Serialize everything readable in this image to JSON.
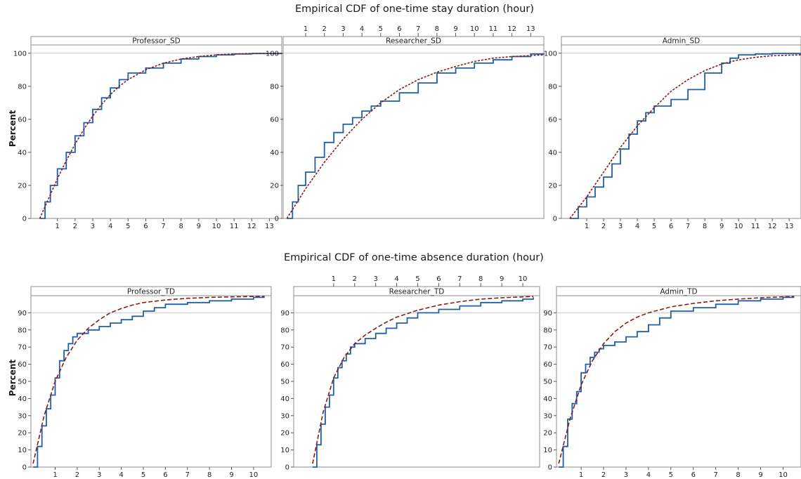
{
  "figure": {
    "title_top": "Empirical CDF of one-time stay duration (hour)",
    "title_bottom": "Empirical CDF of one-time absence duration (hour)",
    "ylabel": "Percent"
  },
  "colors": {
    "ecdf": "#1f5fa8",
    "fit": "#8b1a1a",
    "frame": "#8c8c8c",
    "grid": "#c8c8c8"
  },
  "chart_data": [
    {
      "type": "line",
      "title": "Professor_SD",
      "ylabel": "Percent",
      "xlim": [
        -0.5,
        13.7
      ],
      "ylim": [
        0,
        105
      ],
      "xticks": [
        1,
        2,
        3,
        4,
        5,
        6,
        7,
        8,
        9,
        10,
        11,
        12,
        13
      ],
      "yticks": [
        0,
        20,
        40,
        60,
        80,
        100
      ],
      "xticks_top": [],
      "series": [
        {
          "values_x": [
            0,
            0.3,
            0.6,
            1,
            1.5,
            2,
            2.5,
            3,
            3.5,
            4,
            4.5,
            5,
            6,
            7,
            8,
            9,
            10,
            11,
            12,
            13.7
          ],
          "values": [
            0,
            10,
            20,
            30,
            40,
            50,
            58,
            66,
            73,
            79,
            84,
            88,
            91,
            94,
            96.5,
            98,
            99,
            99.5,
            99.8,
            100
          ],
          "style": "step"
        },
        {
          "values_x": [
            0,
            0.5,
            1,
            1.5,
            2,
            2.5,
            3,
            3.5,
            4,
            4.5,
            5,
            6,
            7,
            8,
            9,
            10,
            11,
            12,
            13.7
          ],
          "values": [
            0,
            12,
            24,
            35,
            45,
            54,
            62,
            69,
            75,
            80,
            84,
            90,
            94,
            96.5,
            98,
            99,
            99.5,
            99.8,
            100
          ],
          "style": "dashed"
        }
      ]
    },
    {
      "type": "line",
      "title": "Researcher_SD",
      "ylabel": "",
      "xlim": [
        -0.2,
        13.7
      ],
      "ylim": [
        0,
        105
      ],
      "xticks": [],
      "yticks": [
        0,
        20,
        40,
        60,
        80,
        100
      ],
      "xticks_top": [
        1,
        2,
        3,
        4,
        5,
        6,
        7,
        8,
        9,
        10,
        11,
        12,
        13
      ],
      "series": [
        {
          "values_x": [
            0,
            0.3,
            0.6,
            1,
            1.5,
            2,
            2.5,
            3,
            3.5,
            4,
            4.5,
            5,
            6,
            7,
            8,
            9,
            10,
            11,
            12,
            13,
            13.7
          ],
          "values": [
            0,
            10,
            20,
            28,
            37,
            46,
            52,
            57,
            61,
            65,
            68,
            71,
            76,
            82,
            88,
            91,
            94,
            96,
            98,
            99.5,
            100
          ],
          "style": "step"
        },
        {
          "values_x": [
            0,
            1,
            2,
            3,
            4,
            5,
            6,
            7,
            8,
            9,
            10,
            11,
            12,
            13.7
          ],
          "values": [
            0,
            18,
            34,
            48,
            60,
            70,
            78,
            84,
            88.5,
            92,
            95,
            97,
            98,
            99
          ],
          "style": "dashed"
        }
      ]
    },
    {
      "type": "line",
      "title": "Admin_SD",
      "ylabel": "",
      "xlim": [
        -0.5,
        13.7
      ],
      "ylim": [
        0,
        105
      ],
      "xticks": [
        1,
        2,
        3,
        4,
        5,
        6,
        7,
        8,
        9,
        10,
        11,
        12,
        13
      ],
      "yticks": [
        0,
        20,
        40,
        60,
        80,
        100
      ],
      "xticks_top": [],
      "series": [
        {
          "values_x": [
            0,
            0.5,
            1,
            1.5,
            2,
            2.5,
            3,
            3.5,
            4,
            4.5,
            5,
            6,
            7,
            8,
            9,
            9.5,
            10,
            11,
            12,
            13.7
          ],
          "values": [
            0,
            7,
            13,
            19,
            25,
            33,
            42,
            51,
            59,
            64,
            68,
            72,
            78,
            88,
            94,
            97,
            99,
            99.5,
            99.8,
            100
          ],
          "style": "step"
        },
        {
          "values_x": [
            0,
            1,
            2,
            3,
            4,
            5,
            6,
            7,
            8,
            9,
            10,
            11,
            12,
            13.7
          ],
          "values": [
            0,
            13,
            28,
            43,
            56,
            67,
            77,
            84,
            89.5,
            93.5,
            96,
            97.5,
            98.5,
            99
          ],
          "style": "dashed"
        }
      ]
    },
    {
      "type": "line",
      "title": "Professor_TD",
      "ylabel": "Percent",
      "xlim": [
        -0.1,
        10.8
      ],
      "ylim": [
        0,
        100
      ],
      "xticks": [
        1,
        2,
        3,
        4,
        5,
        6,
        7,
        8,
        9,
        10
      ],
      "yticks": [
        0,
        10,
        20,
        30,
        40,
        50,
        60,
        70,
        80,
        90
      ],
      "xticks_top": [],
      "series": [
        {
          "values_x": [
            0,
            0.2,
            0.4,
            0.6,
            0.8,
            1,
            1.2,
            1.4,
            1.6,
            1.8,
            2,
            2.5,
            3,
            3.5,
            4,
            4.5,
            5,
            5.5,
            6,
            7,
            8,
            9,
            10,
            10.5
          ],
          "values": [
            0,
            12,
            24,
            34,
            42,
            52,
            62,
            68,
            72,
            76,
            78,
            80,
            82,
            84,
            86,
            88,
            91,
            93,
            95,
            96,
            97,
            98,
            99,
            99
          ],
          "style": "step"
        },
        {
          "values_x": [
            0,
            0.5,
            1,
            1.5,
            2,
            2.5,
            3,
            3.5,
            4,
            4.5,
            5,
            6,
            7,
            8,
            9,
            10,
            10.5
          ],
          "values": [
            2,
            30,
            50,
            64,
            74,
            81,
            86,
            90,
            92.5,
            94.5,
            96,
            97.5,
            98.5,
            99,
            99.3,
            99.5,
            99.5
          ],
          "style": "dashed"
        }
      ]
    },
    {
      "type": "line",
      "title": "Researcher_TD",
      "ylabel": "",
      "xlim": [
        -0.9,
        10.8
      ],
      "ylim": [
        0,
        100
      ],
      "xticks": [],
      "yticks": [
        0,
        10,
        20,
        30,
        40,
        50,
        60,
        70,
        80,
        90
      ],
      "xticks_top": [
        1,
        2,
        3,
        4,
        5,
        6,
        7,
        8,
        9,
        10
      ],
      "series": [
        {
          "values_x": [
            0,
            0.2,
            0.4,
            0.6,
            0.8,
            1,
            1.2,
            1.4,
            1.6,
            1.8,
            2,
            2.5,
            3,
            3.5,
            4,
            4.5,
            5,
            6,
            7,
            8,
            9,
            10,
            10.5
          ],
          "values": [
            0,
            13,
            25,
            35,
            42,
            52,
            58,
            62,
            66,
            70,
            72,
            75,
            78,
            81,
            84,
            87,
            90,
            92,
            94,
            96,
            97,
            98,
            99
          ],
          "style": "step"
        },
        {
          "values_x": [
            0,
            0.5,
            1,
            1.5,
            2,
            2.5,
            3,
            3.5,
            4,
            5,
            6,
            7,
            8,
            9,
            10,
            10.5
          ],
          "values": [
            2,
            32,
            52,
            64,
            72,
            77,
            81,
            84.5,
            87.5,
            91.5,
            94.5,
            96.5,
            98,
            98.8,
            99.3,
            99.5
          ],
          "style": "dashed"
        }
      ]
    },
    {
      "type": "line",
      "title": "Admin_TD",
      "ylabel": "",
      "xlim": [
        -0.1,
        10.8
      ],
      "ylim": [
        0,
        100
      ],
      "xticks": [
        1,
        2,
        3,
        4,
        5,
        6,
        7,
        8,
        9,
        10
      ],
      "yticks": [
        0,
        10,
        20,
        30,
        40,
        50,
        60,
        70,
        80,
        90
      ],
      "xticks_top": [],
      "series": [
        {
          "values_x": [
            0,
            0.2,
            0.4,
            0.6,
            0.8,
            1,
            1.2,
            1.4,
            1.6,
            1.8,
            2,
            2.5,
            3,
            3.5,
            4,
            4.5,
            5,
            6,
            7,
            8,
            9,
            10,
            10.5
          ],
          "values": [
            0,
            12,
            28,
            37,
            44,
            55,
            60,
            64,
            67,
            69,
            71,
            73,
            76,
            79,
            83,
            87,
            91,
            93,
            95,
            97,
            98,
            99,
            99
          ],
          "style": "step"
        },
        {
          "values_x": [
            0,
            0.5,
            1,
            1.5,
            2,
            2.5,
            3,
            3.5,
            4,
            5,
            6,
            7,
            8,
            9,
            10,
            10.5
          ],
          "values": [
            2,
            28,
            48,
            62,
            72,
            79,
            84,
            87.5,
            90,
            93.5,
            95.5,
            97,
            98,
            98.8,
            99.3,
            99.5
          ],
          "style": "dashed"
        }
      ]
    }
  ]
}
